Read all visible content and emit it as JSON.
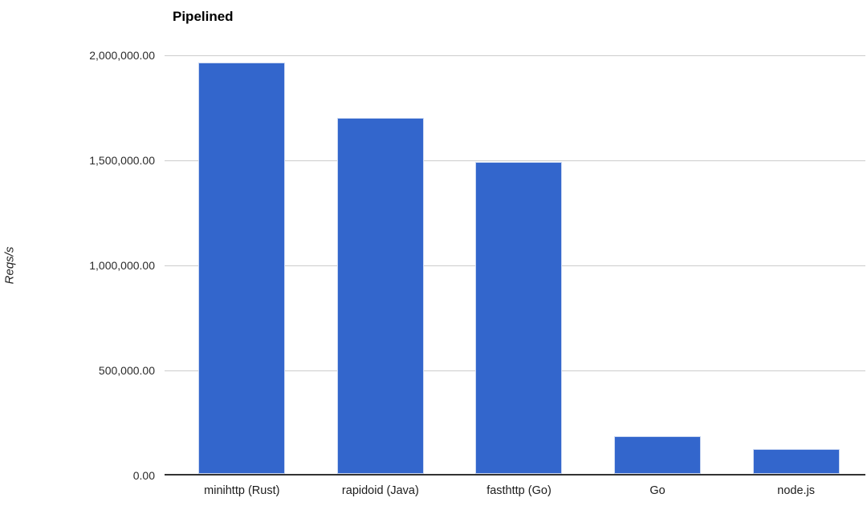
{
  "chart_data": {
    "type": "bar",
    "title": "Pipelined",
    "xlabel": "",
    "ylabel": "Reqs/s",
    "categories": [
      "minihttp (Rust)",
      "rapidoid (Java)",
      "fasthttp (Go)",
      "Go",
      "node.js"
    ],
    "values": [
      1965000,
      1700000,
      1490000,
      180000,
      120000
    ],
    "ylim": [
      0,
      2000000
    ],
    "yticks": [
      "0.00",
      "500,000.00",
      "1,000,000.00",
      "1,500,000.00",
      "2,000,000.00"
    ],
    "grid": true,
    "legend": false,
    "bar_color": "#3366cc",
    "bar_border_color": "#ccd9f2",
    "gridline_color": "#cccccc",
    "zero_line_color": "#333333",
    "background_color": "#ffffff"
  }
}
